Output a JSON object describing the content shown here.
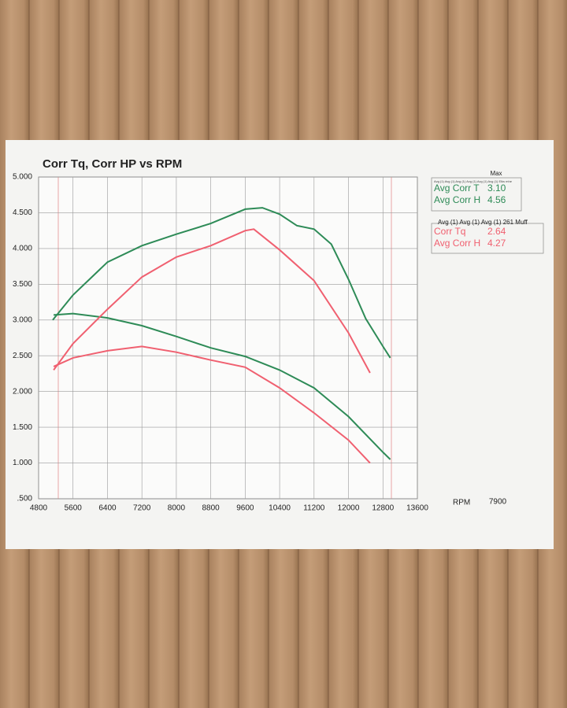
{
  "chart_data": {
    "type": "line",
    "title": "Corr Tq, Corr HP vs RPM",
    "x_label": "RPM",
    "annotation": "7900",
    "xlim": [
      4800,
      13600
    ],
    "xticks": [
      4800,
      5600,
      6400,
      7200,
      8000,
      8800,
      9600,
      10400,
      11200,
      12000,
      12800,
      13600
    ],
    "ylim": [
      0.5,
      5.0
    ],
    "yticks": [
      {
        "value": 0.5,
        "label": ".500"
      },
      {
        "value": 1.0,
        "label": "1.000"
      },
      {
        "value": 1.5,
        "label": "1.500"
      },
      {
        "value": 2.0,
        "label": "2.000"
      },
      {
        "value": 2.5,
        "label": "2.500"
      },
      {
        "value": 3.0,
        "label": "3.000"
      },
      {
        "value": 3.5,
        "label": "3.500"
      },
      {
        "value": 4.0,
        "label": "4.000"
      },
      {
        "value": 4.5,
        "label": "4.500"
      },
      {
        "value": 5.0,
        "label": "5.000"
      }
    ],
    "grid": true,
    "legend_headers": [
      {
        "title": "Max",
        "subtitle": "Avg (1) Avg (1) Avg (1) Avg (1) Avg (1) Avg (1) Elks mhe"
      },
      {
        "subtitle": "Avg (1) Avg (1) Avg (1) 261 Muff"
      }
    ],
    "series": [
      {
        "name": "Avg Corr T",
        "max": "3.10",
        "color": "#2e8b57",
        "x": [
          5150,
          5600,
          6400,
          7200,
          8000,
          8800,
          9600,
          10400,
          11200,
          12000,
          12800,
          12970
        ],
        "values": [
          3.07,
          3.09,
          3.03,
          2.92,
          2.77,
          2.61,
          2.49,
          2.3,
          2.05,
          1.65,
          1.15,
          1.05
        ]
      },
      {
        "name": "Avg Corr H",
        "max": "4.56",
        "color": "#2e8b57",
        "x": [
          5130,
          5600,
          6400,
          7200,
          8000,
          8800,
          9600,
          10000,
          10400,
          10800,
          11200,
          11600,
          12000,
          12400,
          12800,
          12970
        ],
        "values": [
          3.0,
          3.35,
          3.81,
          4.04,
          4.2,
          4.35,
          4.55,
          4.57,
          4.48,
          4.32,
          4.27,
          4.06,
          3.57,
          3.02,
          2.63,
          2.47
        ]
      },
      {
        "name": "Corr Tq",
        "max": "2.64",
        "color": "#f06070",
        "x": [
          5150,
          5600,
          6400,
          7200,
          8000,
          8800,
          9600,
          10400,
          11200,
          12000,
          12500
        ],
        "values": [
          2.35,
          2.47,
          2.57,
          2.63,
          2.55,
          2.44,
          2.34,
          2.05,
          1.7,
          1.32,
          1.0
        ]
      },
      {
        "name": "Avg Corr H",
        "max": "4.27",
        "color": "#f06070",
        "x": [
          5150,
          5600,
          6400,
          7200,
          8000,
          8800,
          9600,
          9800,
          10400,
          11200,
          12000,
          12500
        ],
        "values": [
          2.3,
          2.67,
          3.15,
          3.6,
          3.88,
          4.04,
          4.25,
          4.27,
          3.98,
          3.55,
          2.82,
          2.26
        ]
      }
    ]
  }
}
